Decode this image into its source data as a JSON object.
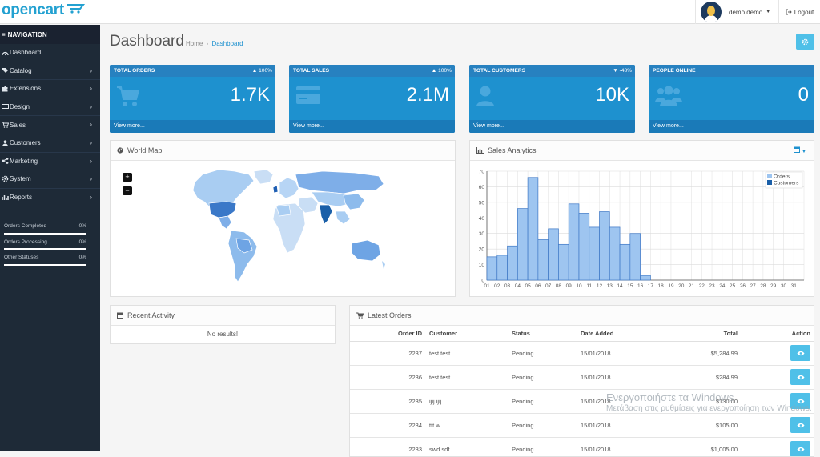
{
  "header": {
    "logo_text": "opencart",
    "user_name": "demo demo",
    "logout_label": "Logout"
  },
  "sidebar": {
    "heading": "NAVIGATION",
    "items": [
      {
        "label": "Dashboard",
        "icon": "dashboard-icon",
        "chevron": false
      },
      {
        "label": "Catalog",
        "icon": "tag-icon",
        "chevron": true
      },
      {
        "label": "Extensions",
        "icon": "puzzle-icon",
        "chevron": true
      },
      {
        "label": "Design",
        "icon": "monitor-icon",
        "chevron": true
      },
      {
        "label": "Sales",
        "icon": "cart-icon",
        "chevron": true
      },
      {
        "label": "Customers",
        "icon": "user-icon",
        "chevron": true
      },
      {
        "label": "Marketing",
        "icon": "share-icon",
        "chevron": true
      },
      {
        "label": "System",
        "icon": "gear-icon",
        "chevron": true
      },
      {
        "label": "Reports",
        "icon": "bar-chart-icon",
        "chevron": true
      }
    ],
    "stats": [
      {
        "label": "Orders Completed",
        "percent": "0%",
        "fraction": 0
      },
      {
        "label": "Orders Processing",
        "percent": "0%",
        "fraction": 0
      },
      {
        "label": "Other Statuses",
        "percent": "0%",
        "fraction": 0
      }
    ]
  },
  "page": {
    "title": "Dashboard",
    "breadcrumb_home": "Home",
    "breadcrumb_sep": "›",
    "breadcrumb_current": "Dashboard"
  },
  "tiles": [
    {
      "title": "TOTAL ORDERS",
      "delta": "100%",
      "delta_dir": "up",
      "value": "1.7K",
      "icon": "cart-icon",
      "link": "View more..."
    },
    {
      "title": "TOTAL SALES",
      "delta": "100%",
      "delta_dir": "up",
      "value": "2.1M",
      "icon": "credit-card-icon",
      "link": "View more..."
    },
    {
      "title": "TOTAL CUSTOMERS",
      "delta": "-48%",
      "delta_dir": "down",
      "value": "10K",
      "icon": "user-icon",
      "link": "View more..."
    },
    {
      "title": "PEOPLE ONLINE",
      "delta": "",
      "delta_dir": "",
      "value": "0",
      "icon": "users-icon",
      "link": "View more..."
    }
  ],
  "world_map": {
    "title": "World Map",
    "zoom_in": "+",
    "zoom_out": "−"
  },
  "sales_analytics": {
    "title": "Sales Analytics"
  },
  "chart_data": {
    "type": "bar",
    "title": "",
    "xlabel": "",
    "ylabel": "",
    "categories": [
      "01",
      "02",
      "03",
      "04",
      "05",
      "06",
      "07",
      "08",
      "09",
      "10",
      "11",
      "12",
      "13",
      "14",
      "15",
      "16",
      "17",
      "18",
      "19",
      "20",
      "21",
      "22",
      "23",
      "24",
      "25",
      "26",
      "27",
      "28",
      "29",
      "30",
      "31"
    ],
    "series": [
      {
        "name": "Orders",
        "color": "#9ec5f0",
        "values": [
          15,
          16,
          22,
          46,
          66,
          26,
          33,
          23,
          49,
          43,
          34,
          44,
          34,
          23,
          30,
          3,
          0,
          0,
          0,
          0,
          0,
          0,
          0,
          0,
          0,
          0,
          0,
          0,
          0,
          0,
          0
        ]
      },
      {
        "name": "Customers",
        "color": "#1a5fa8",
        "values": [
          0,
          0,
          0,
          0,
          0,
          0,
          0,
          0,
          0,
          0,
          0,
          0,
          0,
          0,
          0,
          0,
          0,
          0,
          0,
          0,
          0,
          0,
          0,
          0,
          0,
          0,
          0,
          0,
          0,
          0,
          0
        ]
      }
    ],
    "ylim": [
      0,
      70
    ],
    "yticks": [
      0,
      10,
      20,
      30,
      40,
      50,
      60,
      70
    ],
    "grid": true,
    "legend": "top-right"
  },
  "recent_activity": {
    "title": "Recent Activity",
    "empty": "No results!"
  },
  "latest_orders": {
    "title": "Latest Orders",
    "columns": [
      "Order ID",
      "Customer",
      "Status",
      "Date Added",
      "Total",
      "Action"
    ],
    "rows": [
      {
        "id": "2237",
        "customer": "test test",
        "status": "Pending",
        "date": "15/01/2018",
        "total": "$5,284.99"
      },
      {
        "id": "2236",
        "customer": "test test",
        "status": "Pending",
        "date": "15/01/2018",
        "total": "$284.99"
      },
      {
        "id": "2235",
        "customer": "ijij ijij",
        "status": "Pending",
        "date": "15/01/2018",
        "total": "$130.00"
      },
      {
        "id": "2234",
        "customer": "ttt w",
        "status": "Pending",
        "date": "15/01/2018",
        "total": "$105.00"
      },
      {
        "id": "2233",
        "customer": "swd sdf",
        "status": "Pending",
        "date": "15/01/2018",
        "total": "$1,005.00"
      }
    ]
  },
  "watermark": {
    "line1": "Ενεργοποιήστε τα Windows",
    "line2": "Μετάβαση στις ρυθμίσεις για ενεργοποίηση των Windows."
  }
}
